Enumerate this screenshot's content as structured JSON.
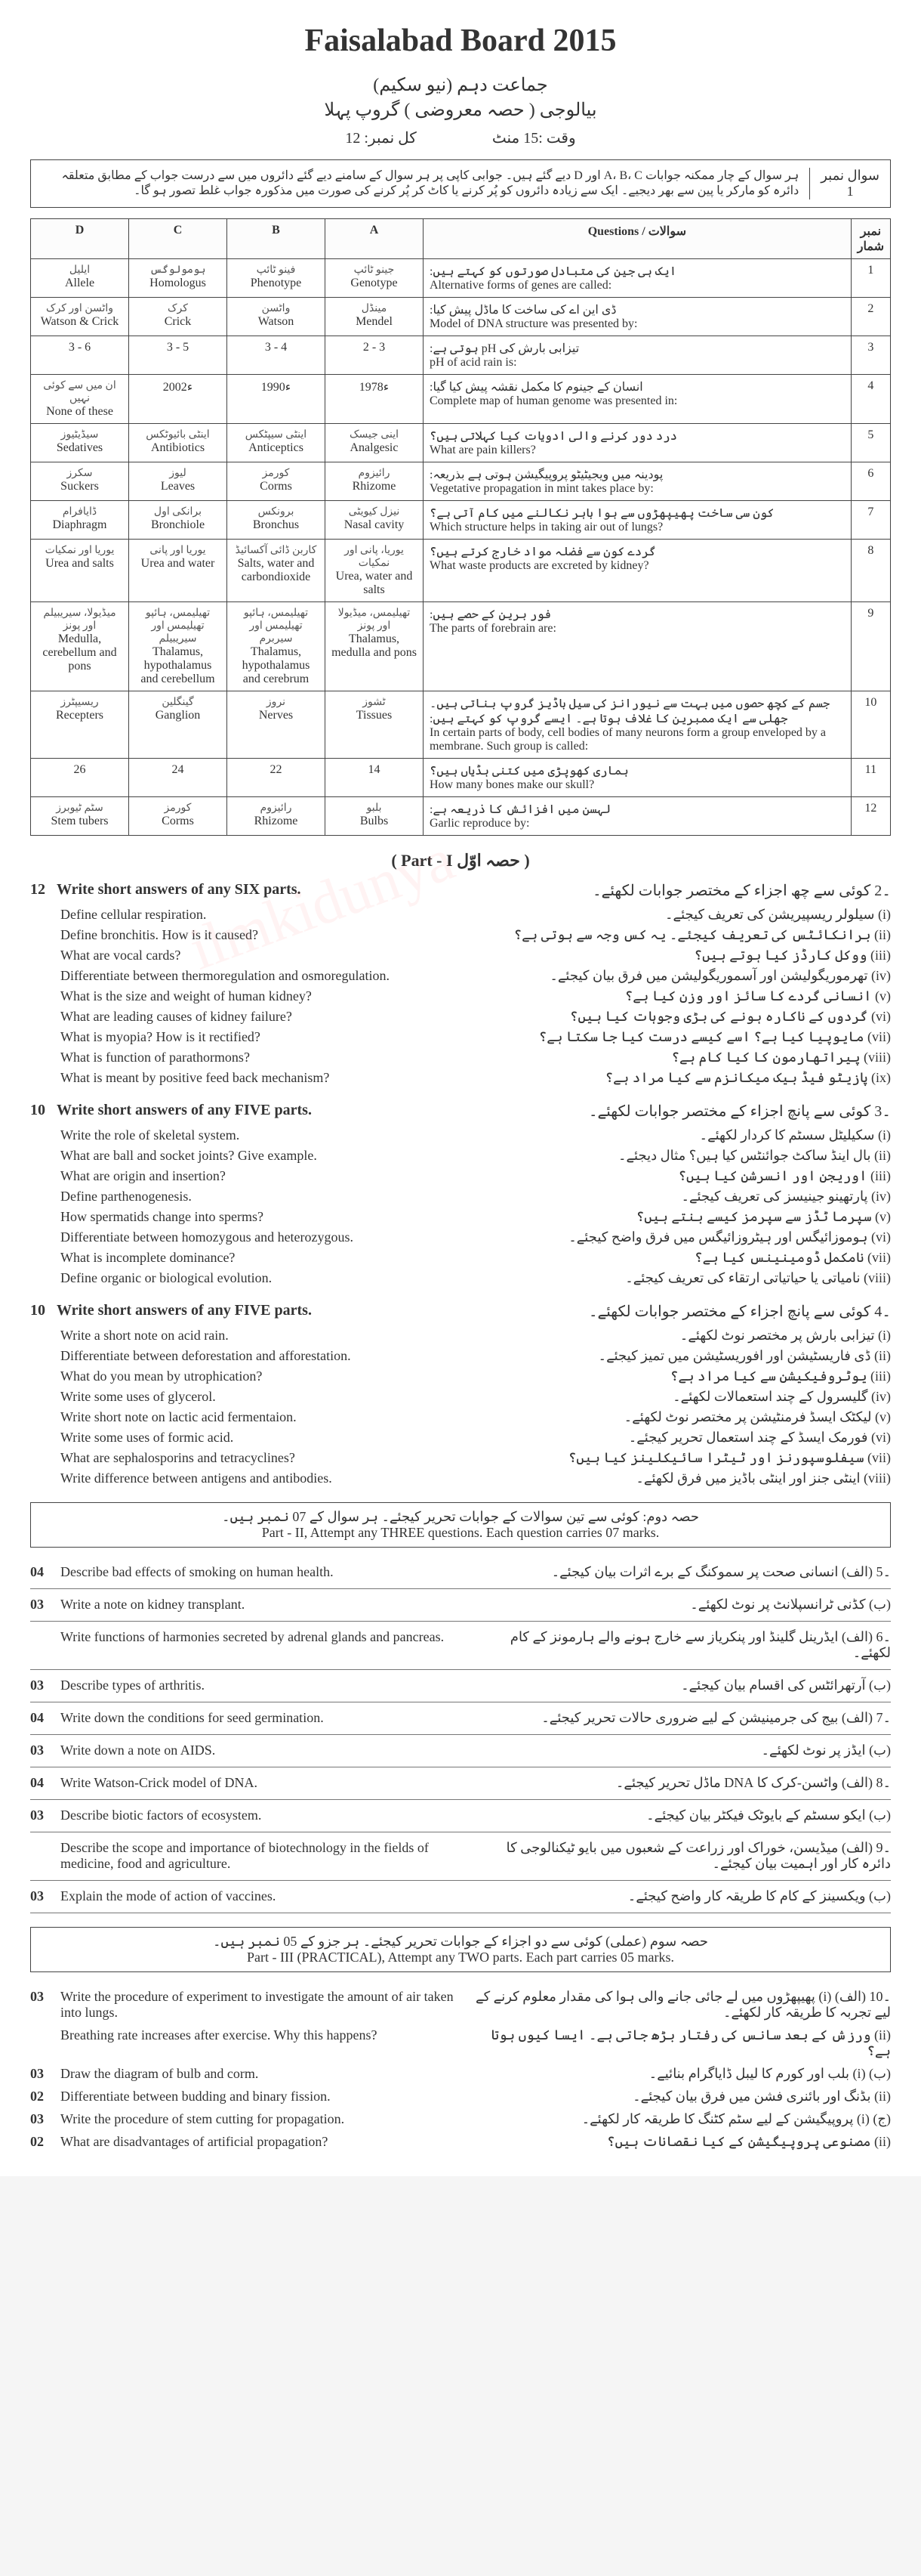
{
  "header": {
    "board": "Faisalabad Board 2015",
    "class_urdu": "جماعت دہم (نیو سکیم)",
    "subject_urdu": "بیالوجی ( حصہ معروضی )   گروپ پہلا",
    "time": "وقت :15 منٹ",
    "marks": "کل نمبر: 12"
  },
  "instruction": {
    "num_label": "سوال نمبر",
    "num": "1",
    "text_ur": "ہر سوال کے چار ممکنہ جوابات A، B، C اور D دیے گئے ہیں۔ جوابی کاپی پر ہر سوال کے سامنے دیے گئے دائروں میں سے درست جواب کے مطابق متعلقہ دائرہ کو مارکر یا پین سے بھر دیجیے۔ ایک سے زیادہ دائروں کو پُر کرنے یا کاٹ کر پُر کرنے کی صورت میں مذکورہ جواب غلط تصور ہو گا۔"
  },
  "mcq_headers": {
    "num": "نمبر شمار",
    "q": "Questions / سوالات",
    "a": "A",
    "b": "B",
    "c": "C",
    "d": "D"
  },
  "mcq": [
    {
      "n": "1",
      "q_en": "Alternative forms of genes are called:",
      "q_ur": "ایک ہی جین کی متبادل صورتوں کو کہتے ہیں:",
      "a": "Genotype",
      "a_ur": "جینو ٹائپ",
      "b": "Phenotype",
      "b_ur": "فینو ٹائپ",
      "c": "Homologus",
      "c_ur": "ہومولوگس",
      "d": "Allele",
      "d_ur": "ایلیل"
    },
    {
      "n": "2",
      "q_en": "Model of DNA structure was presented by:",
      "q_ur": "ڈی این اے کی ساخت کا ماڈل پیش کیا:",
      "a": "Mendel",
      "a_ur": "مینڈل",
      "b": "Watson",
      "b_ur": "واٹسن",
      "c": "Crick",
      "c_ur": "کرک",
      "d": "Watson & Crick",
      "d_ur": "واٹسن اور کرک"
    },
    {
      "n": "3",
      "q_en": "pH of acid rain is:",
      "q_ur": "تیزابی بارش کی pH ہوتی ہے:",
      "a": "2 - 3",
      "a_ur": "",
      "b": "3 - 4",
      "b_ur": "",
      "c": "3 - 5",
      "c_ur": "",
      "d": "3 - 6",
      "d_ur": ""
    },
    {
      "n": "4",
      "q_en": "Complete map of human genome was presented in:",
      "q_ur": "انسان کے جینوم کا مکمل نقشہ پیش کیا گیا:",
      "a": "1978ء",
      "a_ur": "",
      "b": "1990ء",
      "b_ur": "",
      "c": "2002ء",
      "c_ur": "",
      "d": "None of these",
      "d_ur": "ان میں سے کوئی نہیں"
    },
    {
      "n": "5",
      "q_en": "What are pain killers?",
      "q_ur": "درد دور کرنے والی ادویات کیا کہلاتی ہیں؟",
      "a": "Analgesic",
      "a_ur": "اینی جیسک",
      "b": "Anticeptics",
      "b_ur": "اینٹی سیپٹکس",
      "c": "Antibiotics",
      "c_ur": "اینٹی بائیوٹکس",
      "d": "Sedatives",
      "d_ur": "سیڈیٹیوز"
    },
    {
      "n": "6",
      "q_en": "Vegetative propagation in mint takes place by:",
      "q_ur": "پودینہ میں ویجیٹیٹو پروپیگیشن ہوتی ہے بذریعہ:",
      "a": "Rhizome",
      "a_ur": "رائیزوم",
      "b": "Corms",
      "b_ur": "کورمز",
      "c": "Leaves",
      "c_ur": "لیوز",
      "d": "Suckers",
      "d_ur": "سکرز"
    },
    {
      "n": "7",
      "q_en": "Which structure helps in taking air out of lungs?",
      "q_ur": "کون سی ساخت پھیپھڑوں سے ہوا باہر نکالنے میں کام آتی ہے؟",
      "a": "Nasal cavity",
      "a_ur": "نیزل کیویٹی",
      "b": "Bronchus",
      "b_ur": "برونکس",
      "c": "Bronchiole",
      "c_ur": "برانکی اول",
      "d": "Diaphragm",
      "d_ur": "ڈایافرام"
    },
    {
      "n": "8",
      "q_en": "What waste products are excreted by kidney?",
      "q_ur": "گردے کون سے فضلہ مواد خارج کرتے ہیں؟",
      "a": "Urea, water and salts",
      "a_ur": "یوریا، پانی اور نمکیات",
      "b": "Salts, water and carbondioxide",
      "b_ur": "کاربن ڈائی آکسائیڈ",
      "c": "Urea and water",
      "c_ur": "یوریا اور پانی",
      "d": "Urea and salts",
      "d_ur": "یوریا اور نمکیات"
    },
    {
      "n": "9",
      "q_en": "The parts of forebrain are:",
      "q_ur": "فور برین کے حصے ہیں:",
      "a": "Thalamus, medulla and pons",
      "a_ur": "تھیلیمس، میڈیولا اور پونز",
      "b": "Thalamus, hypothalamus and cerebrum",
      "b_ur": "تھیلیمس، ہائپو تھیلیمس اور سیربرم",
      "c": "Thalamus, hypothalamus and cerebellum",
      "c_ur": "تھیلیمس، ہائپو تھیلیمس اور سیریبیلم",
      "d": "Medulla, cerebellum and pons",
      "d_ur": "میڈیولا، سیریبیلم اور پونز"
    },
    {
      "n": "10",
      "q_en": "In certain parts of body, cell bodies of many neurons form a group enveloped by a membrane. Such group is called:",
      "q_ur": "جسم کے کچھ حصوں میں بہت سے نیورانز کی سیل باڈیز گروپ بناتی ہیں۔ جھلی سے ایک ممبرین کا غلاف ہوتا ہے۔ ایسے گروپ کو کہتے ہیں:",
      "a": "Tissues",
      "a_ur": "ٹشوز",
      "b": "Nerves",
      "b_ur": "نروز",
      "c": "Ganglion",
      "c_ur": "گینگلین",
      "d": "Recepters",
      "d_ur": "ریسیپٹرز"
    },
    {
      "n": "11",
      "q_en": "How many bones make our skull?",
      "q_ur": "ہماری کھوپڑی میں کتنی ہڈیاں ہیں؟",
      "a": "14",
      "a_ur": "",
      "b": "22",
      "b_ur": "",
      "c": "24",
      "c_ur": "",
      "d": "26",
      "d_ur": ""
    },
    {
      "n": "12",
      "q_en": "Garlic reproduce by:",
      "q_ur": "لہسن میں افزائش کا ذریعہ ہے:",
      "a": "Bulbs",
      "a_ur": "بلبو",
      "b": "Rhizome",
      "b_ur": "رائیزوم",
      "c": "Corms",
      "c_ur": "کورمز",
      "d": "Stem tubers",
      "d_ur": "سٹم ٹیوبرز"
    }
  ],
  "part1_label": "( Part - I   حصہ اوّل )",
  "short_sections": [
    {
      "marks": "12",
      "head_en": "Write short answers of any SIX parts.",
      "head_ur": "۔2   کوئی سے چھ اجزاء کے مختصر جوابات لکھئے۔",
      "num": "",
      "items": [
        {
          "en": "Define cellular respiration.",
          "ur": "(i)   سیلولر ریسپیریشن کی تعریف کیجئے۔"
        },
        {
          "en": "Define bronchitis. How is it caused?",
          "ur": "(ii)   برانکائٹس کی تعریف کیجئے۔ یہ کس وجہ سے ہوتی ہے؟"
        },
        {
          "en": "What are vocal cards?",
          "ur": "(iii)   ووکل کارڈز کیا ہوتے ہیں؟"
        },
        {
          "en": "Differentiate between thermoregulation and osmoregulation.",
          "ur": "(iv)   تھرموریگولیشن اور آسموریگولیشن میں فرق بیان کیجئے۔"
        },
        {
          "en": "What is the size and weight of human kidney?",
          "ur": "(v)   انسانی گردے کا سائز اور وزن کیا ہے؟"
        },
        {
          "en": "What are leading causes of kidney failure?",
          "ur": "(vi)   گردوں کے ناکارہ ہونے کی بڑی وجوہات کیا ہیں؟"
        },
        {
          "en": "What is myopia? How is it rectified?",
          "ur": "(vii)   مایوپیا کیا ہے؟ اسے کیسے درست کیا جا سکتا ہے؟"
        },
        {
          "en": "What is function of parathormons?",
          "ur": "(viii)   پیراتھارمون کا کیا کام ہے؟"
        },
        {
          "en": "What is meant by positive feed back mechanism?",
          "ur": "(ix)   پازیٹو فیڈ بیک میکانزم سے کیا مراد ہے؟"
        }
      ]
    },
    {
      "marks": "10",
      "head_en": "Write short answers of any FIVE parts.",
      "head_ur": "۔3   کوئی سے پانچ اجزاء کے مختصر جوابات لکھئے۔",
      "items": [
        {
          "en": "Write the role of skeletal system.",
          "ur": "(i)   سکیلیٹل سسٹم کا کردار لکھئے۔"
        },
        {
          "en": "What are ball and socket joints? Give example.",
          "ur": "(ii)   بال اینڈ ساکٹ جوائنٹس کیا ہیں؟ مثال دیجئے۔"
        },
        {
          "en": "What are origin and insertion?",
          "ur": "(iii)   اوریجن اور انسرشن کیا ہیں؟"
        },
        {
          "en": "Define parthenogenesis.",
          "ur": "(iv)   پارتھینو جینیسز کی تعریف کیجئے۔"
        },
        {
          "en": "How spermatids change into sperms?",
          "ur": "(v)   سپرما ٹڈز سے سپرمز کیسے بنتے ہیں؟"
        },
        {
          "en": "Differentiate between homozygous and heterozygous.",
          "ur": "(vi)   ہوموزائیگس اور ہیٹروزائیگس میں فرق واضح کیجئے۔"
        },
        {
          "en": "What is incomplete dominance?",
          "ur": "(vii)   نامکمل ڈومینینس کیا ہے؟"
        },
        {
          "en": "Define organic or biological evolution.",
          "ur": "(viii)   نامیاتی یا حیاتیاتی ارتقاء کی تعریف کیجئے۔"
        }
      ]
    },
    {
      "marks": "10",
      "head_en": "Write short answers of any FIVE parts.",
      "head_ur": "۔4   کوئی سے پانچ اجزاء کے مختصر جوابات لکھئے۔",
      "items": [
        {
          "en": "Write a short note on acid rain.",
          "ur": "(i)   تیزابی بارش پر مختصر نوٹ لکھئے۔"
        },
        {
          "en": "Differentiate between deforestation and afforestation.",
          "ur": "(ii)   ڈی فاریسٹیشن اور افوریسٹیشن میں تمیز کیجئے۔"
        },
        {
          "en": "What do you mean by utrophication?",
          "ur": "(iii)   یوٹروفیکیشن سے کیا مراد ہے؟"
        },
        {
          "en": "Write some uses of glycerol.",
          "ur": "(iv)   گلیسرول کے چند استعمالات لکھئے۔"
        },
        {
          "en": "Write short note on lactic acid fermentaion.",
          "ur": "(v)   لیکٹک ایسڈ فرمنٹیشن پر مختصر نوٹ لکھئے۔"
        },
        {
          "en": "Write some uses of formic acid.",
          "ur": "(vi)   فورمک ایسڈ کے چند استعمال تحریر کیجئے۔"
        },
        {
          "en": "What are sephalosporins and tetracyclines?",
          "ur": "(vii)   سیفلوسپورنز اور ٹیٹرا سائیکلینز کیا ہیں؟"
        },
        {
          "en": "Write difference between antigens and antibodies.",
          "ur": "(viii)   اینٹی جنز اور اینٹی باڈیز میں فرق لکھئے۔"
        }
      ]
    }
  ],
  "part2_box": {
    "ur": "حصہ دوم: کوئی سے تین سوالات کے جوابات تحریر کیجئے۔ ہر سوال کے 07 نمبر ہیں۔",
    "en": "Part - II, Attempt any THREE questions. Each question carries 07 marks."
  },
  "long_rows": [
    {
      "m": "04",
      "en": "Describe bad effects of smoking on human health.",
      "ur": "۔5   (الف) انسانی صحت پر سموکنگ کے برے اثرات بیان کیجئے۔"
    },
    {
      "m": "03",
      "en": "Write a note on kidney transplant.",
      "ur": "(ب) کڈنی ٹرانسپلانٹ پر نوٹ لکھئے۔"
    },
    {
      "m": "",
      "en": "Write functions of harmonies secreted by adrenal glands and pancreas.",
      "ur": "۔6   (الف) ایڈرینل گلینڈ اور پنکریاز سے خارج ہونے والے ہارمونز کے کام لکھئے۔"
    },
    {
      "m": "03",
      "en": "Describe types of arthritis.",
      "ur": "(ب) آرتھرائٹس کی اقسام بیان کیجئے۔"
    },
    {
      "m": "04",
      "en": "Write down the conditions for seed germination.",
      "ur": "۔7   (الف) بیج کی جرمینیشن کے لیے ضروری حالات تحریر کیجئے۔"
    },
    {
      "m": "03",
      "en": "Write down a note on AIDS.",
      "ur": "(ب) ایڈز پر نوٹ لکھئے۔"
    },
    {
      "m": "04",
      "en": "Write Watson-Crick model of DNA.",
      "ur": "۔8   (الف) واٹسن-کرک کا DNA ماڈل تحریر کیجئے۔"
    },
    {
      "m": "03",
      "en": "Describe biotic factors of ecosystem.",
      "ur": "(ب) ایکو سسٹم کے بایوٹک فیکٹر بیان کیجئے۔"
    },
    {
      "m": "",
      "en": "Describe the scope and importance of biotechnology in the fields of medicine, food and agriculture.",
      "ur": "۔9   (الف) میڈیسن، خوراک اور زراعت کے شعبوں میں بایو ٹیکنالوجی کا دائرہ کار اور اہمیت بیان کیجئے۔"
    },
    {
      "m": "03",
      "en": "Explain the mode of action of vaccines.",
      "ur": "(ب) ویکسینز کے کام کا طریقہ کار واضح کیجئے۔"
    }
  ],
  "part3_box": {
    "ur": "حصہ سوم (عملی)   کوئی سے دو اجزاء کے جوابات تحریر کیجئے۔ ہر جزو کے 05 نمبر ہیں۔",
    "en": "Part - III (PRACTICAL), Attempt any TWO parts. Each part carries 05 marks."
  },
  "practical_rows": [
    {
      "m": "03",
      "en": "Write the procedure of experiment to investigate the amount of air taken into lungs.",
      "ur": "۔10   (الف) (i) پھیپھڑوں میں لے جائی جانے والی ہوا کی مقدار معلوم کرنے کے لیے تجربہ کا طریقہ کار لکھئے۔"
    },
    {
      "m": "",
      "en": "Breathing rate increases after exercise. Why this happens?",
      "ur": "(ii) ورزش کے بعد سانس کی رفتار بڑھ جاتی ہے۔ ایسا کیوں ہوتا ہے؟"
    },
    {
      "m": "03",
      "en": "Draw the diagram of bulb and corm.",
      "ur": "(ب) (i) بلب اور کورم کا لیبل ڈایاگرام بنائیے۔"
    },
    {
      "m": "02",
      "en": "Differentiate between budding and binary fission.",
      "ur": "(ii) بڈنگ اور بائنری فشن میں فرق بیان کیجئے۔"
    },
    {
      "m": "03",
      "en": "Write the procedure of stem cutting for propagation.",
      "ur": "(ج) (i) پروپیگیشن کے لیے سٹم کٹنگ کا طریقہ کار لکھئے۔"
    },
    {
      "m": "02",
      "en": "What are disadvantages of artificial propagation?",
      "ur": "(ii) مصنوعی پروپیگیشن کے کیا نقصانات ہیں؟"
    }
  ]
}
